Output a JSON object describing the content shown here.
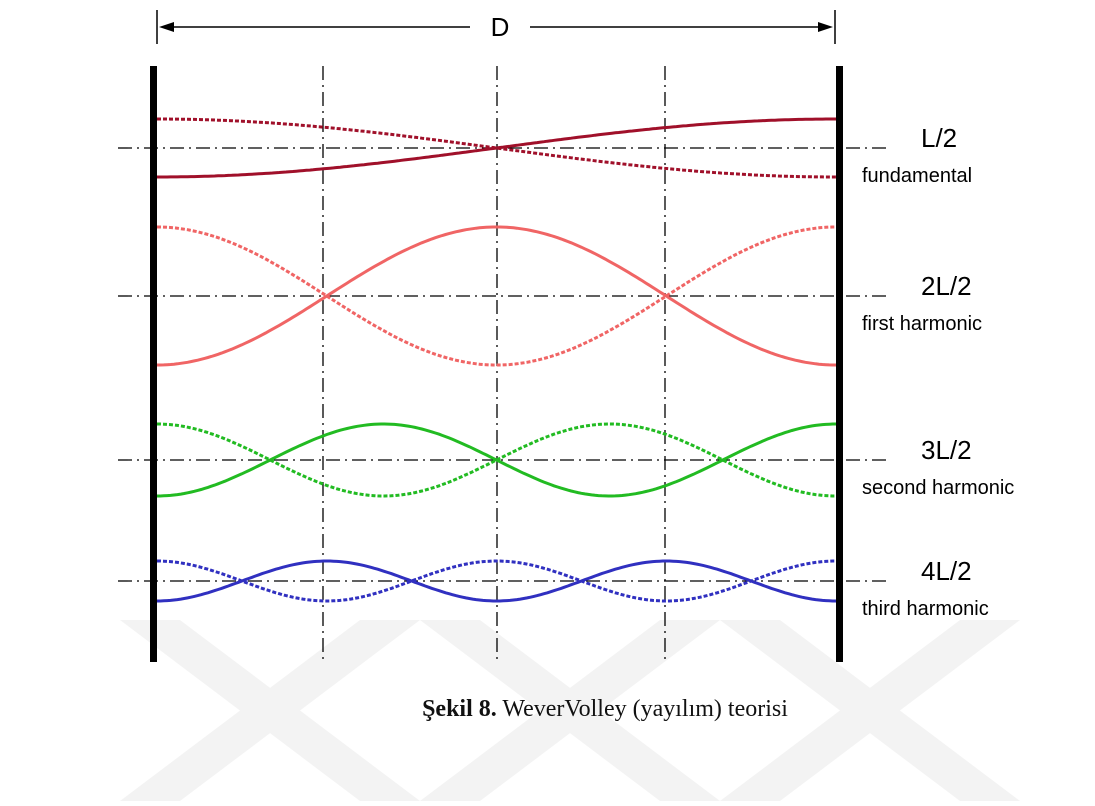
{
  "dimension": {
    "label": "D"
  },
  "modes": [
    {
      "label": "L/2",
      "name": "fundamental",
      "harmonic_number": 1,
      "color": "#a0102a"
    },
    {
      "label": "2L/2",
      "name": "first harmonic",
      "harmonic_number": 2,
      "color": "#f06565"
    },
    {
      "label": "3L/2",
      "name": "second harmonic",
      "harmonic_number": 3,
      "color": "#22bb22"
    },
    {
      "label": "4L/2",
      "name": "third harmonic",
      "harmonic_number": 4,
      "color": "#3030c0"
    }
  ],
  "caption": {
    "figure": "Şekil 8.",
    "text": "WeverVolley (yayılım) teorisi"
  },
  "colors": {
    "wall": "#000000",
    "watermark": "#f3f3f3"
  }
}
